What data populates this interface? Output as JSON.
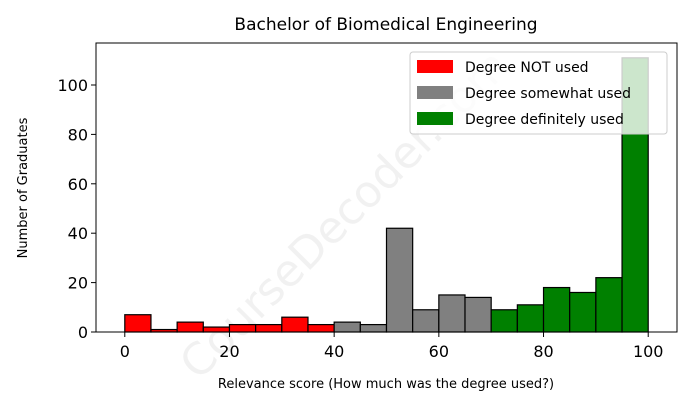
{
  "watermark": "CourseDecoder.com",
  "chart_data": {
    "type": "bar",
    "title": "Bachelor of Biomedical Engineering",
    "xlabel": "Relevance score (How much was the degree used?)",
    "ylabel": "Number of Graduates",
    "xlim": [
      -5.5,
      105.5
    ],
    "ylim": [
      0,
      117
    ],
    "xticks": [
      0,
      20,
      40,
      60,
      80,
      100
    ],
    "yticks": [
      0,
      20,
      40,
      60,
      80,
      100
    ],
    "bin_width": 5,
    "legend_position": "top-right",
    "series": [
      {
        "name": "Degree NOT used",
        "color": "#ff0000",
        "bin_starts": [
          0,
          5,
          10,
          15,
          20,
          25,
          30,
          35
        ],
        "values": [
          7,
          1,
          4,
          2,
          3,
          3,
          6,
          3
        ]
      },
      {
        "name": "Degree somewhat used",
        "color": "#808080",
        "bin_starts": [
          40,
          45,
          50,
          55,
          60,
          65
        ],
        "values": [
          4,
          3,
          42,
          9,
          15,
          14
        ]
      },
      {
        "name": "Degree definitely used",
        "color": "#008000",
        "bin_starts": [
          70,
          75,
          80,
          85,
          90,
          95
        ],
        "values": [
          9,
          11,
          18,
          16,
          22,
          111
        ]
      }
    ]
  }
}
